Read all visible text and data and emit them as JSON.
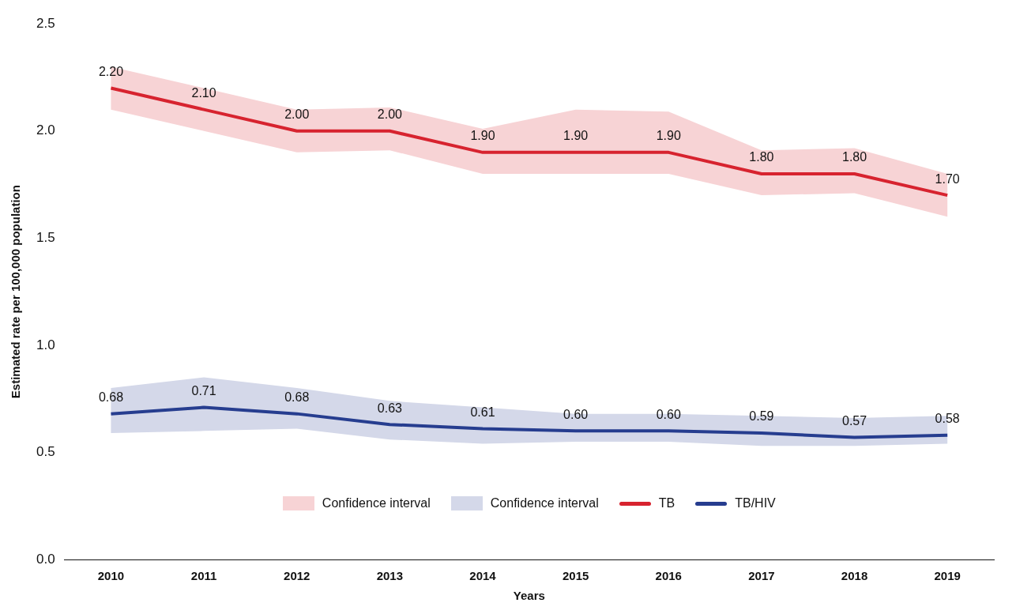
{
  "chart_data": {
    "type": "line",
    "xlabel": "Years",
    "ylabel": "Estimated rate per 100,000 population",
    "categories": [
      "2010",
      "2011",
      "2012",
      "2013",
      "2014",
      "2015",
      "2016",
      "2017",
      "2018",
      "2019"
    ],
    "ylim": [
      0,
      2.5
    ],
    "yticks": [
      {
        "value": 0,
        "label": "0.0"
      },
      {
        "value": 0.5,
        "label": "0.5"
      },
      {
        "value": 1,
        "label": "1.0"
      },
      {
        "value": 1.5,
        "label": "1.5"
      },
      {
        "value": 2,
        "label": "2.0"
      },
      {
        "value": 2.5,
        "label": "2.5"
      }
    ],
    "annotations": [
      "Confidence interval",
      "Confidence interval"
    ],
    "grid": false,
    "legend": "bottom",
    "marker": "none",
    "line_style": "solid",
    "series": [
      {
        "name": "TB",
        "type": "line",
        "color": "#d7232f",
        "values": [
          2.2,
          2.1,
          2.0,
          2.0,
          1.9,
          1.9,
          1.9,
          1.8,
          1.8,
          1.7
        ],
        "value_labels": [
          "2.20",
          "2.10",
          "2.00",
          "2.00",
          "1.90",
          "1.90",
          "1.90",
          "1.80",
          "1.80",
          "1.70"
        ],
        "lower": [
          2.1,
          2.0,
          1.9,
          1.91,
          1.8,
          1.8,
          1.8,
          1.7,
          1.71,
          1.6
        ],
        "upper": [
          2.3,
          2.2,
          2.1,
          2.11,
          2.01,
          2.1,
          2.09,
          1.91,
          1.92,
          1.8
        ]
      },
      {
        "name": "TB/HIV",
        "type": "line",
        "color": "#263d8f",
        "values": [
          0.68,
          0.71,
          0.68,
          0.63,
          0.61,
          0.6,
          0.6,
          0.59,
          0.57,
          0.58
        ],
        "value_labels": [
          "0.68",
          "0.71",
          "0.68",
          "0.63",
          "0.61",
          "0.60",
          "0.60",
          "0.59",
          "0.57",
          "0.58"
        ],
        "lower": [
          0.59,
          0.6,
          0.61,
          0.56,
          0.54,
          0.55,
          0.55,
          0.53,
          0.53,
          0.54
        ],
        "upper": [
          0.8,
          0.85,
          0.8,
          0.74,
          0.71,
          0.68,
          0.68,
          0.67,
          0.66,
          0.67
        ]
      }
    ]
  }
}
